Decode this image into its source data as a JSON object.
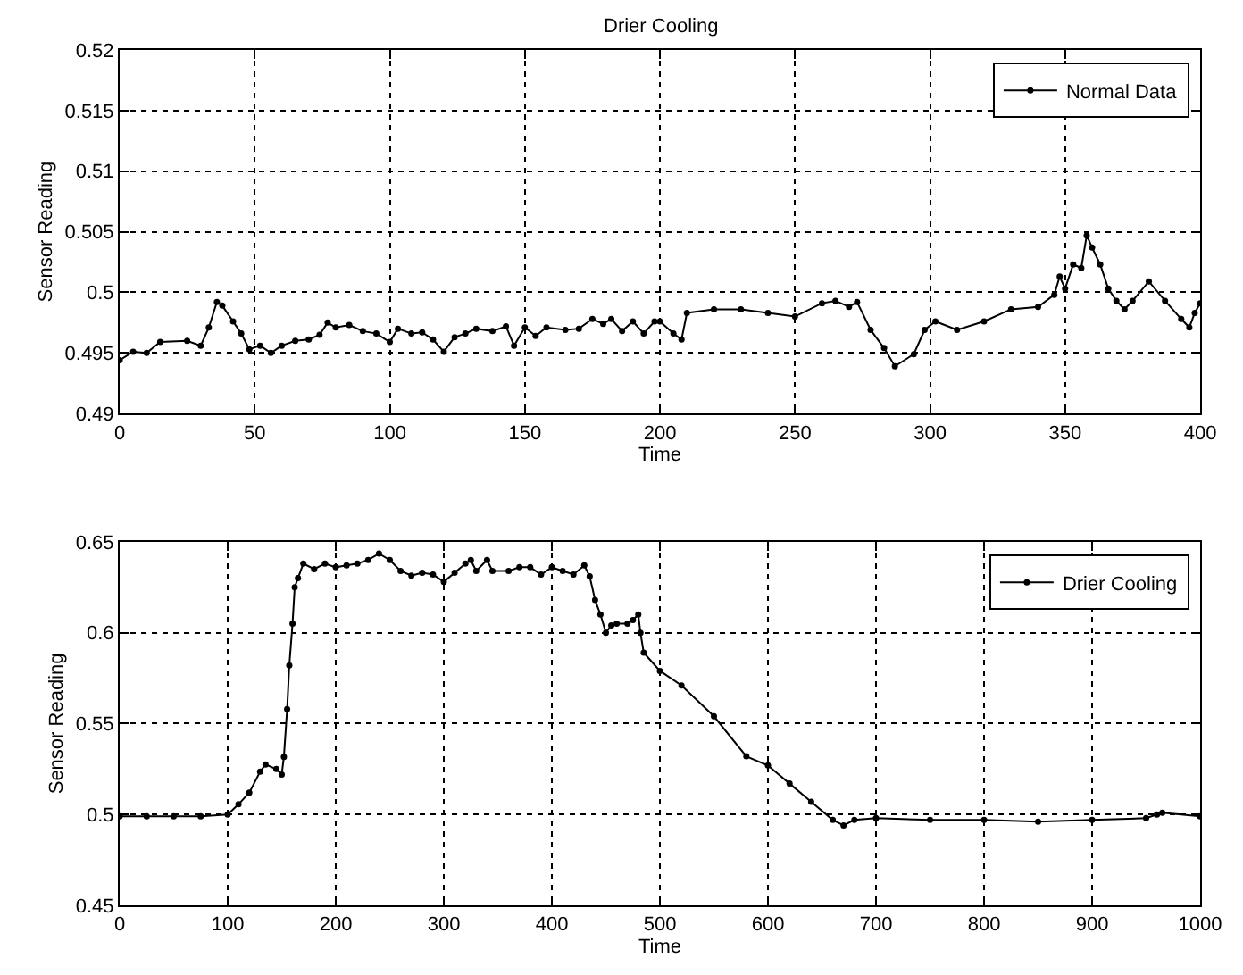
{
  "chart_data": [
    {
      "type": "line",
      "title": "Drier Cooling",
      "xlabel": "Time",
      "ylabel": "Sensor Reading",
      "xlim": [
        0,
        400
      ],
      "xticks": [
        0,
        50,
        100,
        150,
        200,
        250,
        300,
        350,
        400
      ],
      "ylim": [
        0.49,
        0.52
      ],
      "yticks": [
        0.49,
        0.495,
        0.5,
        0.505,
        0.51,
        0.515,
        0.52
      ],
      "grid": true,
      "legend": "top right",
      "marker": "circle",
      "line_style": "solid",
      "series": [
        {
          "name": "Normal Data",
          "color": "#000000",
          "x": [
            0,
            5,
            10,
            15,
            25,
            30,
            33,
            36,
            38,
            42,
            45,
            48,
            52,
            56,
            60,
            65,
            70,
            74,
            77,
            80,
            85,
            90,
            95,
            100,
            103,
            108,
            112,
            116,
            120,
            124,
            128,
            132,
            138,
            143,
            146,
            150,
            154,
            158,
            165,
            170,
            175,
            179,
            182,
            186,
            190,
            194,
            198,
            200,
            205,
            208,
            210,
            220,
            230,
            240,
            250,
            260,
            265,
            270,
            273,
            278,
            283,
            287,
            294,
            298,
            302,
            310,
            320,
            330,
            340,
            346,
            348,
            350,
            353,
            356,
            358,
            360,
            363,
            366,
            369,
            372,
            375,
            381,
            387,
            393,
            396,
            398,
            400
          ],
          "values": [
            0.4944,
            0.4951,
            0.495,
            0.4959,
            0.496,
            0.4956,
            0.4971,
            0.4992,
            0.4989,
            0.4976,
            0.4966,
            0.4953,
            0.4956,
            0.495,
            0.4956,
            0.496,
            0.4961,
            0.4965,
            0.4975,
            0.4971,
            0.4973,
            0.4968,
            0.4966,
            0.4959,
            0.497,
            0.4966,
            0.4967,
            0.4961,
            0.4951,
            0.4963,
            0.4966,
            0.497,
            0.4968,
            0.4972,
            0.4956,
            0.4971,
            0.4964,
            0.4971,
            0.4969,
            0.497,
            0.4978,
            0.4974,
            0.4978,
            0.4968,
            0.4976,
            0.4966,
            0.4976,
            0.4976,
            0.4966,
            0.4961,
            0.4983,
            0.4986,
            0.4986,
            0.4983,
            0.498,
            0.4991,
            0.4993,
            0.4988,
            0.4992,
            0.4969,
            0.4954,
            0.4939,
            0.4949,
            0.4969,
            0.4976,
            0.4969,
            0.4976,
            0.4986,
            0.4988,
            0.4998,
            0.5013,
            0.5003,
            0.5023,
            0.502,
            0.5047,
            0.5037,
            0.5023,
            0.5003,
            0.4993,
            0.4986,
            0.4993,
            0.5009,
            0.4993,
            0.4978,
            0.4971,
            0.4983,
            0.4991
          ]
        }
      ]
    },
    {
      "type": "line",
      "xlabel": "Time",
      "ylabel": "Sensor Reading",
      "xlim": [
        0,
        1000
      ],
      "xticks": [
        0,
        100,
        200,
        300,
        400,
        500,
        600,
        700,
        800,
        900,
        1000
      ],
      "ylim": [
        0.45,
        0.65
      ],
      "yticks": [
        0.45,
        0.5,
        0.55,
        0.6,
        0.65
      ],
      "grid": true,
      "legend": "top right",
      "marker": "circle",
      "line_style": "solid",
      "series": [
        {
          "name": "Drier Cooling",
          "color": "#000000",
          "x": [
            0,
            25,
            50,
            75,
            100,
            110,
            120,
            130,
            135,
            145,
            150,
            152,
            155,
            157,
            160,
            162,
            165,
            170,
            180,
            190,
            200,
            210,
            220,
            230,
            240,
            250,
            260,
            270,
            280,
            290,
            300,
            310,
            320,
            325,
            330,
            340,
            345,
            360,
            370,
            380,
            390,
            400,
            410,
            420,
            430,
            435,
            440,
            445,
            450,
            455,
            460,
            470,
            475,
            480,
            482,
            485,
            500,
            520,
            550,
            580,
            600,
            620,
            640,
            660,
            670,
            680,
            700,
            750,
            800,
            850,
            900,
            950,
            960,
            965,
            1000
          ],
          "values": [
            0.499,
            0.499,
            0.499,
            0.499,
            0.5,
            0.5056,
            0.512,
            0.5236,
            0.5275,
            0.525,
            0.522,
            0.5317,
            0.558,
            0.582,
            0.605,
            0.625,
            0.63,
            0.638,
            0.635,
            0.638,
            0.636,
            0.637,
            0.638,
            0.64,
            0.6435,
            0.64,
            0.634,
            0.6314,
            0.633,
            0.632,
            0.628,
            0.633,
            0.638,
            0.64,
            0.634,
            0.64,
            0.634,
            0.634,
            0.636,
            0.636,
            0.632,
            0.636,
            0.634,
            0.632,
            0.637,
            0.631,
            0.618,
            0.61,
            0.6,
            0.604,
            0.605,
            0.605,
            0.607,
            0.61,
            0.6,
            0.589,
            0.579,
            0.571,
            0.554,
            0.532,
            0.527,
            0.517,
            0.507,
            0.497,
            0.494,
            0.497,
            0.498,
            0.497,
            0.497,
            0.496,
            0.497,
            0.498,
            0.5,
            0.501,
            0.499
          ]
        }
      ]
    }
  ]
}
